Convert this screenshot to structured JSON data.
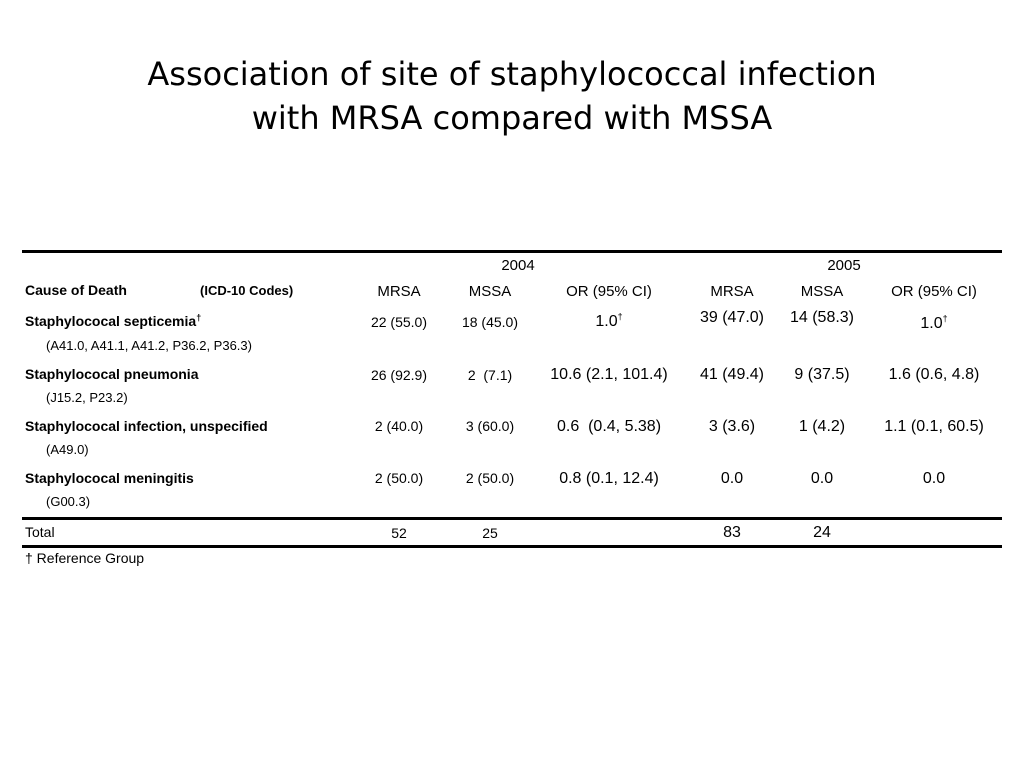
{
  "title": {
    "line1": "Association of site of staphylococcal infection",
    "line2": "with MRSA compared with MSSA"
  },
  "table": {
    "years": [
      "2004",
      "2005"
    ],
    "header": {
      "cause": "Cause of Death",
      "codes": "(ICD-10 Codes)",
      "mrsa": "MRSA",
      "mssa": "MSSA",
      "or": "OR (95% CI)"
    },
    "rows": [
      {
        "cause": "Staphylococal septicemia",
        "cause_mark": "†",
        "codes": "(A41.0, A41.1, A41.2, P36.2, P36.3)",
        "mrsa_2004": "22 (55.0)",
        "mssa_2004": "18 (45.0)",
        "or_2004": "1.0",
        "or_2004_mark": "†",
        "mrsa_2005": "39 (47.0)",
        "mssa_2005": "14 (58.3)",
        "or_2005": "1.0",
        "or_2005_mark": "†"
      },
      {
        "cause": "Staphylococal pneumonia",
        "codes": "(J15.2, P23.2)",
        "mrsa_2004": "26 (92.9)",
        "mssa_2004": "2  (7.1)",
        "or_2004": "10.6 (2.1, 101.4)",
        "mrsa_2005": "41 (49.4)",
        "mssa_2005": "9 (37.5)",
        "or_2005": "1.6 (0.6, 4.8)"
      },
      {
        "cause": "Staphylococal infection, unspecified",
        "codes": "(A49.0)",
        "mrsa_2004": "2 (40.0)",
        "mssa_2004": "3 (60.0)",
        "or_2004": "0.6  (0.4, 5.38)",
        "mrsa_2005": "3 (3.6)",
        "mssa_2005": "1 (4.2)",
        "or_2005": "1.1 (0.1, 60.5)"
      },
      {
        "cause": "Staphylococal meningitis",
        "codes": "(G00.3)",
        "mrsa_2004": "2 (50.0)",
        "mssa_2004": "2 (50.0)",
        "or_2004": "0.8 (0.1, 12.4)",
        "mrsa_2005": "0.0",
        "mssa_2005": "0.0",
        "or_2005": "0.0"
      }
    ],
    "total": {
      "label": "Total",
      "mrsa_2004": "52",
      "mssa_2004": "25",
      "mrsa_2005": "83",
      "mssa_2005": "24"
    },
    "footnote": "† Reference Group"
  }
}
